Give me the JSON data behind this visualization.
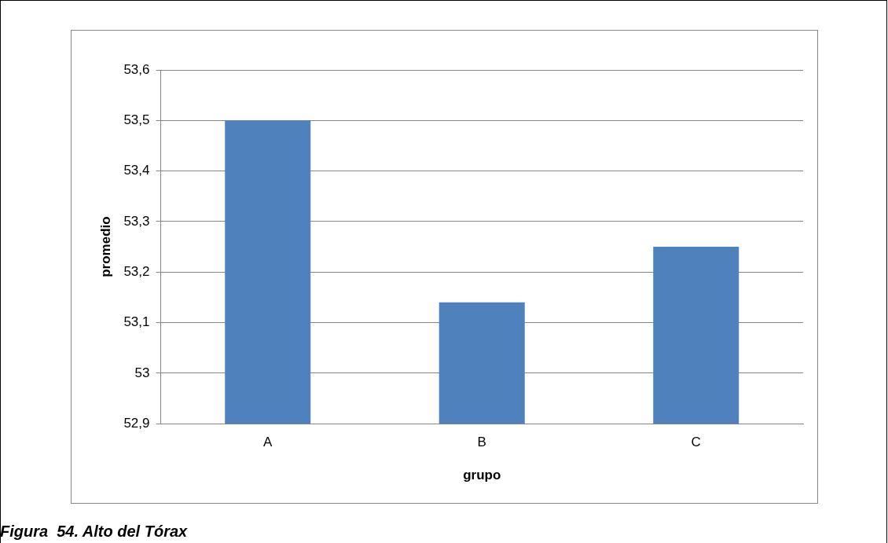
{
  "chart_data": {
    "type": "bar",
    "xlabel": "grupo",
    "ylabel": "promedio",
    "categories": [
      "A",
      "B",
      "C"
    ],
    "values": [
      53.5,
      53.14,
      53.25
    ],
    "color": "#4f81bd",
    "ylim": [
      52.9,
      53.6
    ],
    "yticks": [
      {
        "value": 52.9,
        "label": "52,9"
      },
      {
        "value": 53,
        "label": "53"
      },
      {
        "value": 53.1,
        "label": "53,1"
      },
      {
        "value": 53.2,
        "label": "53,2"
      },
      {
        "value": 53.3,
        "label": "53,3"
      },
      {
        "value": 53.4,
        "label": "53,4"
      },
      {
        "value": 53.5,
        "label": "53,5"
      },
      {
        "value": 53.6,
        "label": "53,6"
      }
    ],
    "grid": "y",
    "legend": false,
    "annotations": [
      "Figura  54. Alto del Tórax"
    ]
  }
}
